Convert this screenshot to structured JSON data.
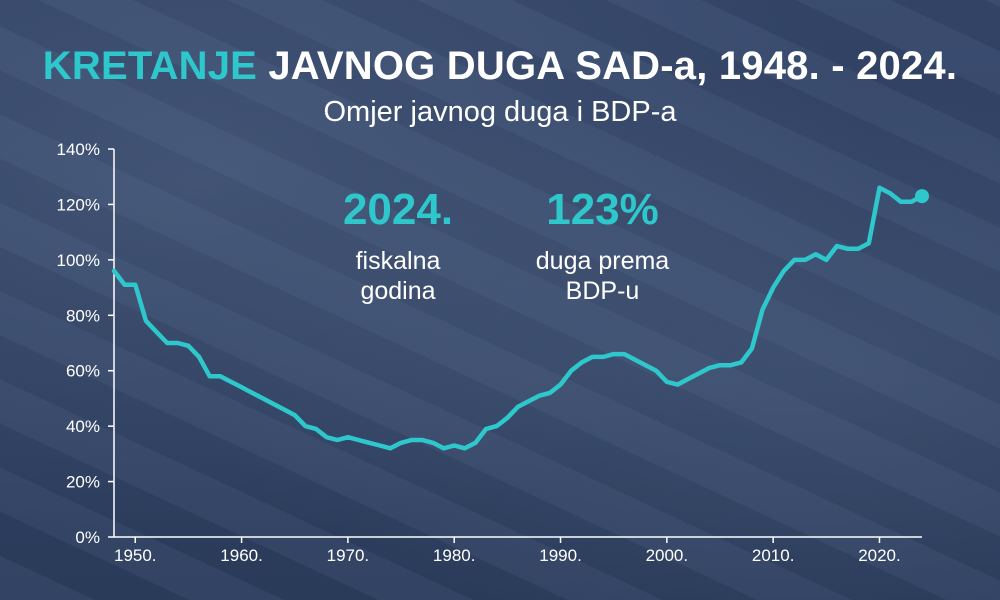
{
  "header": {
    "title_accent": "KRETANJE",
    "title_rest": " JAVNOG DUGA SAD-a, 1948. - 2024.",
    "subtitle": "Omjer javnog duga i BDP-a"
  },
  "callouts": [
    {
      "big": "2024.",
      "line1": "fiskalna",
      "line2": "godina"
    },
    {
      "big": "123%",
      "line1": "duga prema",
      "line2": "BDP-u"
    }
  ],
  "colors": {
    "accent": "#2ec8cc",
    "background": "#2f4163",
    "axis": "#ffffff"
  },
  "chart_data": {
    "type": "line",
    "title": "",
    "xlabel": "",
    "ylabel": "",
    "xlim": [
      1948,
      2024
    ],
    "ylim": [
      0,
      140
    ],
    "xticks": [
      1950,
      1960,
      1970,
      1980,
      1990,
      2000,
      2010,
      2020
    ],
    "xtick_labels": [
      "1950.",
      "1960.",
      "1970.",
      "1980.",
      "1990.",
      "2000.",
      "2010.",
      "2020."
    ],
    "yticks": [
      0,
      20,
      40,
      60,
      80,
      100,
      120,
      140
    ],
    "ytick_labels": [
      "0%",
      "20%",
      "40%",
      "60%",
      "80%",
      "100%",
      "120%",
      "140%"
    ],
    "grid": false,
    "series": [
      {
        "x": [
          1948,
          1949,
          1950,
          1951,
          1952,
          1953,
          1954,
          1955,
          1956,
          1957,
          1958,
          1959,
          1960,
          1961,
          1962,
          1963,
          1964,
          1965,
          1966,
          1967,
          1968,
          1969,
          1970,
          1971,
          1972,
          1973,
          1974,
          1975,
          1976,
          1977,
          1978,
          1979,
          1980,
          1981,
          1982,
          1983,
          1984,
          1985,
          1986,
          1987,
          1988,
          1989,
          1990,
          1991,
          1992,
          1993,
          1994,
          1995,
          1996,
          1997,
          1998,
          1999,
          2000,
          2001,
          2002,
          2003,
          2004,
          2005,
          2006,
          2007,
          2008,
          2009,
          2010,
          2011,
          2012,
          2013,
          2014,
          2015,
          2016,
          2017,
          2018,
          2019,
          2020,
          2021,
          2022,
          2023,
          2024
        ],
        "values": [
          96,
          91,
          91,
          78,
          74,
          70,
          70,
          69,
          65,
          58,
          58,
          56,
          54,
          52,
          50,
          48,
          46,
          44,
          40,
          39,
          36,
          35,
          36,
          35,
          34,
          33,
          32,
          34,
          35,
          35,
          34,
          32,
          33,
          32,
          34,
          39,
          40,
          43,
          47,
          49,
          51,
          52,
          55,
          60,
          63,
          65,
          65,
          66,
          66,
          64,
          62,
          60,
          56,
          55,
          57,
          59,
          61,
          62,
          62,
          63,
          68,
          82,
          90,
          96,
          100,
          100,
          102,
          100,
          105,
          104,
          104,
          106,
          126,
          124,
          121,
          121,
          123
        ]
      }
    ],
    "end_marker": {
      "x": 2024,
      "y": 123
    }
  }
}
